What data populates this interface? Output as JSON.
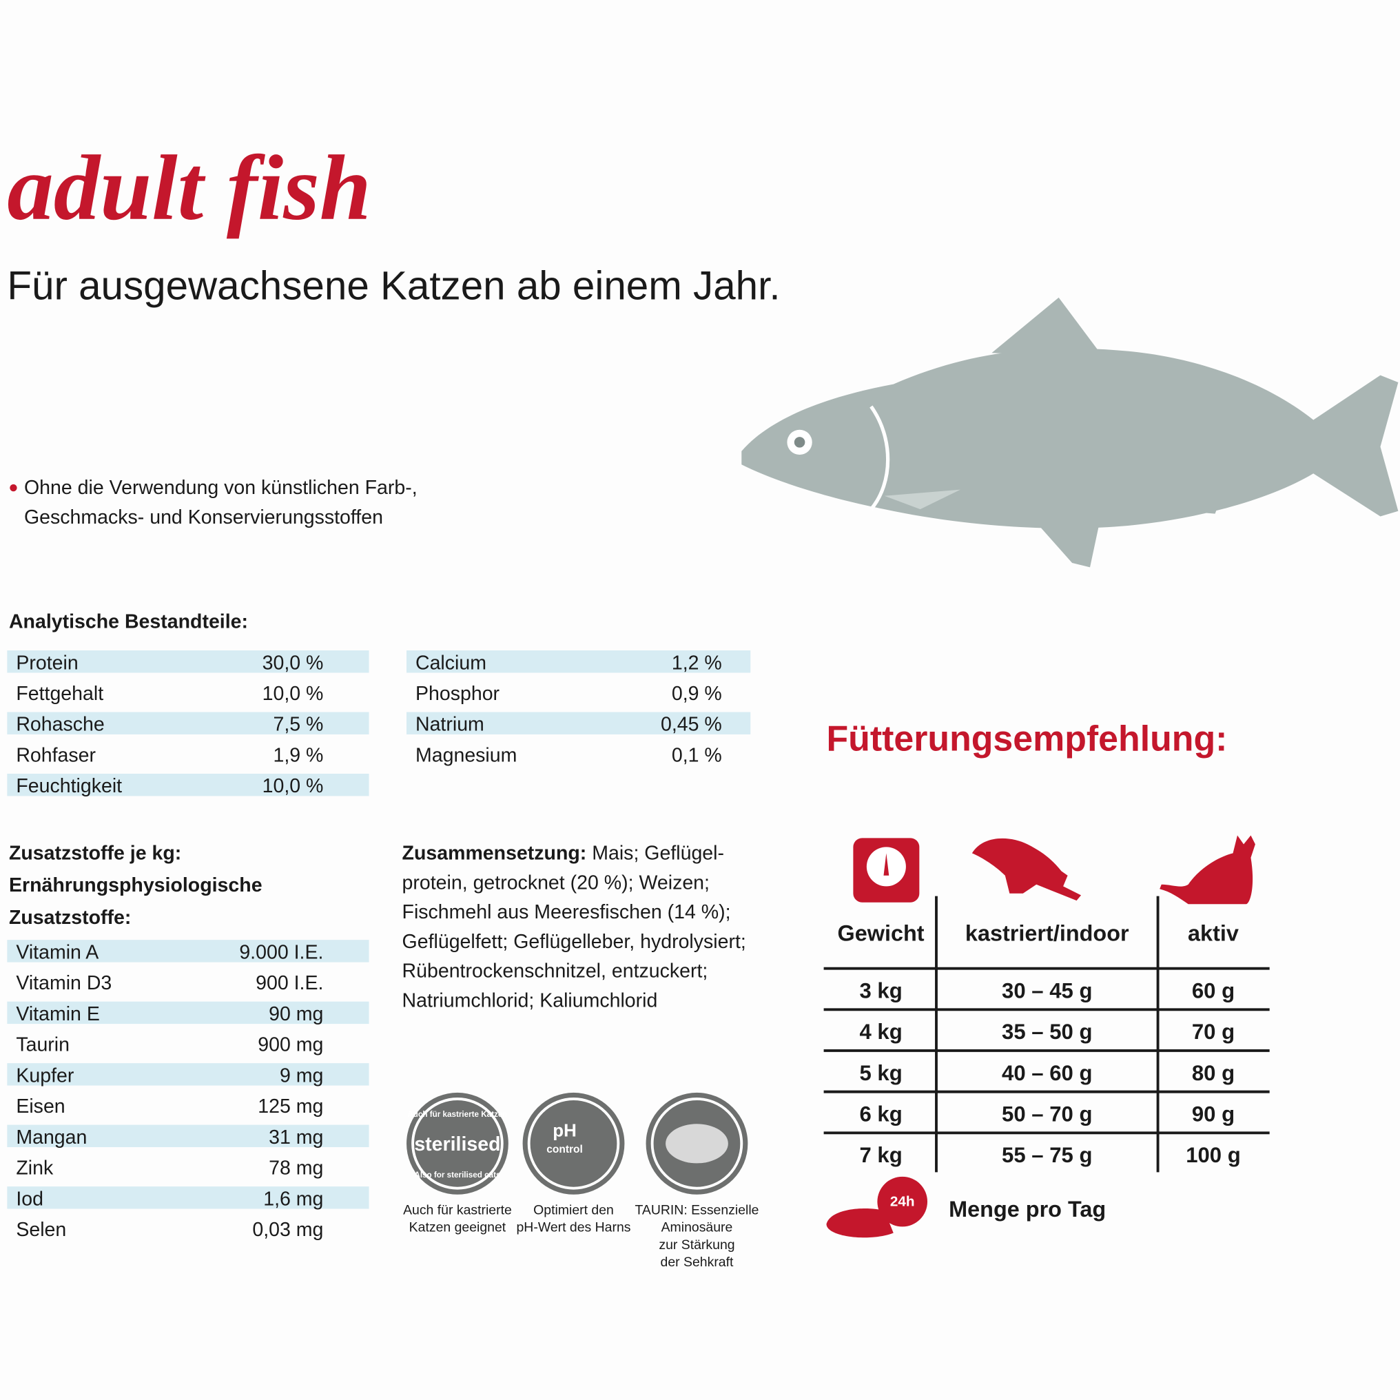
{
  "header": {
    "title": "adult fish",
    "subtitle": "Für ausgewachsene Katzen ab einem Jahr."
  },
  "bullet": {
    "lines": [
      "Ohne die Verwendung von künstlichen Farb-,",
      "Geschmacks- und Konservierungsstoffen"
    ]
  },
  "analytics": {
    "heading": "Analytische Bestandteile:",
    "left": [
      [
        "Protein",
        "30,0 %"
      ],
      [
        "Fettgehalt",
        "10,0 %"
      ],
      [
        "Rohasche",
        "7,5 %"
      ],
      [
        "Rohfaser",
        "1,9 %"
      ],
      [
        "Feuchtigkeit",
        "10,0 %"
      ]
    ],
    "right": [
      [
        "Calcium",
        "1,2 %"
      ],
      [
        "Phosphor",
        "0,9 %"
      ],
      [
        "Natrium",
        "0,45 %"
      ],
      [
        "Magnesium",
        "0,1 %"
      ]
    ]
  },
  "additives": {
    "heading": [
      "Zusatzstoffe je kg:",
      "Ernährungsphysiologische",
      "Zusatzstoffe:"
    ],
    "rows": [
      [
        "Vitamin A",
        "9.000 I.E."
      ],
      [
        "Vitamin D3",
        "900 I.E."
      ],
      [
        "Vitamin E",
        "90 mg"
      ],
      [
        "Taurin",
        "900 mg"
      ],
      [
        "Kupfer",
        "9 mg"
      ],
      [
        "Eisen",
        "125 mg"
      ],
      [
        "Mangan",
        "31 mg"
      ],
      [
        "Zink",
        "78 mg"
      ],
      [
        "Iod",
        "1,6 mg"
      ],
      [
        "Selen",
        "0,03 mg"
      ]
    ]
  },
  "composition": {
    "label": "Zusammensetzung:",
    "lines": [
      " Mais; Geflügel-",
      "protein, getrocknet (20 %); Weizen;",
      "Fischmehl aus Meeresfischen (14 %);",
      "Geflügelfett; Geflügelleber, hydrolysiert;",
      "Rübentrockenschnitzel, entzuckert;",
      "Natriumchlorid; Kaliumchlorid"
    ]
  },
  "badges": [
    {
      "inner": [
        "Auch für kastrierte Katzen",
        "sterilised",
        "Also for sterilised cats"
      ],
      "caption": [
        "Auch für kastrierte",
        "Katzen geeignet"
      ]
    },
    {
      "inner": [
        "pH",
        "control"
      ],
      "caption": [
        "Optimiert den",
        "pH-Wert des Harns"
      ]
    },
    {
      "inner": [],
      "caption": [
        "TAURIN: Essenzielle",
        "Aminosäure",
        "zur Stärkung",
        "der Sehkraft"
      ]
    }
  ],
  "feeding": {
    "heading": "Fütterungsempfehlung:",
    "columns": [
      "Gewicht",
      "kastriert/indoor",
      "aktiv"
    ],
    "rows": [
      [
        "3 kg",
        "30 – 45 g",
        "60 g"
      ],
      [
        "4 kg",
        "35 – 50 g",
        "70 g"
      ],
      [
        "5 kg",
        "40 – 60 g",
        "80 g"
      ],
      [
        "6 kg",
        "50 – 70 g",
        "90 g"
      ],
      [
        "7 kg",
        "55 – 75 g",
        "100 g"
      ]
    ],
    "badge": "24h",
    "note": "Menge pro Tag"
  }
}
